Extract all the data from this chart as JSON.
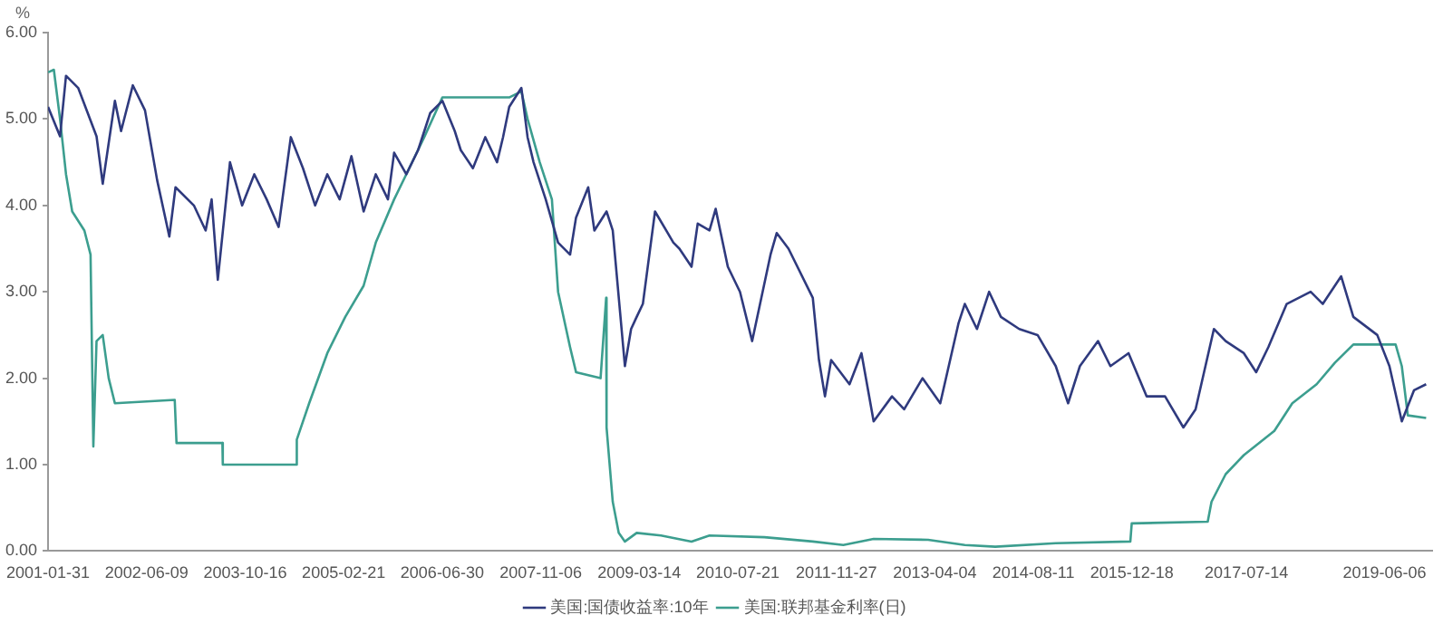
{
  "chart_data": {
    "type": "line",
    "ylabel": "%",
    "xlim": [
      "2001-01-31",
      "2020-01-31"
    ],
    "xticks": [
      "2001-01-31",
      "2002-06-09",
      "2003-10-16",
      "2005-02-21",
      "2006-06-30",
      "2007-11-06",
      "2009-03-14",
      "2010-07-21",
      "2011-11-27",
      "2013-04-04",
      "2014-08-11",
      "2015-12-18",
      "2017-07-14",
      "2019-06-06"
    ],
    "ylim": [
      0,
      6
    ],
    "yticks": [
      {
        "value": 0,
        "label": "0.00"
      },
      {
        "value": 1,
        "label": "1.00"
      },
      {
        "value": 2,
        "label": "2.00"
      },
      {
        "value": 3,
        "label": "3.00"
      },
      {
        "value": 4,
        "label": "4.00"
      },
      {
        "value": 5,
        "label": "5.00"
      },
      {
        "value": 6,
        "label": "6.00"
      }
    ],
    "grid": false,
    "legend": "bottom",
    "marker": "none",
    "line_style": "solid",
    "series": [
      {
        "name": "美国:国债收益率:10年",
        "color": "#2f3a7e",
        "x": [
          "2001-01-31",
          "2001-04",
          "2001-05",
          "2001-07",
          "2001-10",
          "2001-11",
          "2002-01",
          "2002-02",
          "2002-04",
          "2002-06",
          "2002-08",
          "2002-10",
          "2002-11",
          "2003-02",
          "2003-04",
          "2003-05",
          "2003-06",
          "2003-08",
          "2003-10",
          "2003-12",
          "2004-02",
          "2004-04",
          "2004-06",
          "2004-08",
          "2004-10",
          "2004-12",
          "2005-02",
          "2005-04",
          "2005-06",
          "2005-08",
          "2005-10",
          "2005-11",
          "2006-01",
          "2006-03",
          "2006-05",
          "2006-07",
          "2006-09",
          "2006-10",
          "2006-12",
          "2007-02",
          "2007-04",
          "2007-05",
          "2007-06",
          "2007-08",
          "2007-09",
          "2007-10",
          "2007-12",
          "2008-02",
          "2008-04",
          "2008-05",
          "2008-07",
          "2008-08",
          "2008-10",
          "2008-11",
          "2009-01",
          "2009-02",
          "2009-03",
          "2009-04",
          "2009-06",
          "2009-09",
          "2009-10",
          "2009-12",
          "2010-01",
          "2010-03",
          "2010-04",
          "2010-06",
          "2010-08",
          "2010-10",
          "2011-01",
          "2011-02",
          "2011-04",
          "2011-08",
          "2011-09",
          "2011-10",
          "2011-11",
          "2012-02",
          "2012-04",
          "2012-06",
          "2012-09",
          "2012-11",
          "2013-02",
          "2013-05",
          "2013-08",
          "2013-09",
          "2013-11",
          "2014-01",
          "2014-03",
          "2014-06",
          "2014-09",
          "2014-12",
          "2015-02",
          "2015-04",
          "2015-07",
          "2015-09",
          "2015-12",
          "2016-03",
          "2016-06",
          "2016-09",
          "2016-11",
          "2017-02",
          "2017-04",
          "2017-07",
          "2017-09",
          "2017-11",
          "2018-02",
          "2018-06",
          "2018-08",
          "2018-11",
          "2019-01",
          "2019-05",
          "2019-07",
          "2019-09",
          "2019-11",
          "2020-01"
        ],
        "values": [
          5.14,
          4.8,
          5.5,
          5.36,
          4.8,
          4.25,
          5.21,
          4.86,
          5.39,
          5.1,
          4.29,
          3.64,
          4.21,
          4.0,
          3.71,
          4.07,
          3.14,
          4.5,
          4.0,
          4.36,
          4.07,
          3.75,
          4.79,
          4.43,
          4.0,
          4.36,
          4.07,
          4.57,
          3.93,
          4.36,
          4.07,
          4.61,
          4.36,
          4.64,
          5.07,
          5.21,
          4.86,
          4.64,
          4.43,
          4.79,
          4.5,
          4.79,
          5.14,
          5.36,
          4.79,
          4.5,
          4.07,
          3.57,
          3.43,
          3.86,
          4.21,
          3.71,
          3.93,
          3.71,
          2.14,
          2.57,
          2.71,
          2.86,
          3.93,
          3.57,
          3.5,
          3.29,
          3.79,
          3.71,
          3.96,
          3.29,
          3.0,
          2.43,
          3.43,
          3.68,
          3.5,
          2.93,
          2.21,
          1.79,
          2.21,
          1.93,
          2.29,
          1.5,
          1.79,
          1.64,
          2.0,
          1.71,
          2.64,
          2.86,
          2.57,
          3.0,
          2.71,
          2.57,
          2.5,
          2.14,
          1.71,
          2.14,
          2.43,
          2.14,
          2.29,
          1.79,
          1.79,
          1.43,
          1.64,
          2.57,
          2.43,
          2.29,
          2.07,
          2.36,
          2.86,
          3.0,
          2.86,
          3.18,
          2.71,
          2.5,
          2.14,
          1.5,
          1.86,
          1.93
        ]
      },
      {
        "name": "美国:联邦基金利率(日)",
        "color": "#3c9e8f",
        "x": [
          "2001-01-31",
          "2001-03",
          "2001-04",
          "2001-05",
          "2001-06",
          "2001-08",
          "2001-09",
          "2001-09-15",
          "2001-10",
          "2001-11",
          "2001-12",
          "2002-01",
          "2002-10-28",
          "2002-11-06",
          "2003-06-24",
          "2003-06-26",
          "2004-06-30",
          "2004-07-01",
          "2004-09",
          "2004-12",
          "2005-03",
          "2005-06",
          "2005-08",
          "2005-11",
          "2006-01",
          "2006-04",
          "2006-07",
          "2007-06",
          "2007-08",
          "2007-09",
          "2007-11",
          "2008-01",
          "2008-02",
          "2008-04",
          "2008-05",
          "2008-09",
          "2008-09-29",
          "2008-10",
          "2008-11",
          "2008-12",
          "2009-01",
          "2009-03",
          "2009-07",
          "2009-12",
          "2010-03",
          "2010-12",
          "2011-08",
          "2012-01",
          "2012-06",
          "2013-03",
          "2013-09",
          "2014-02",
          "2014-12",
          "2015-12-10",
          "2015-12-17",
          "2017-01-01",
          "2017-01-20",
          "2017-04",
          "2017-07",
          "2017-12",
          "2018-03",
          "2018-07",
          "2018-10",
          "2019-01",
          "2019-08",
          "2019-09",
          "2019-10",
          "2020-01"
        ],
        "values": [
          5.54,
          5.57,
          5.0,
          4.36,
          3.93,
          3.71,
          3.43,
          1.21,
          2.43,
          2.5,
          2.0,
          1.71,
          1.75,
          1.25,
          1.25,
          1.0,
          1.0,
          1.29,
          1.71,
          2.29,
          2.71,
          3.07,
          3.57,
          4.07,
          4.36,
          4.79,
          5.25,
          5.25,
          5.32,
          5.0,
          4.5,
          4.07,
          3.0,
          2.36,
          2.07,
          2.0,
          2.93,
          1.43,
          0.57,
          0.21,
          0.11,
          0.21,
          0.18,
          0.11,
          0.18,
          0.16,
          0.11,
          0.07,
          0.14,
          0.13,
          0.07,
          0.05,
          0.09,
          0.11,
          0.32,
          0.34,
          0.57,
          0.89,
          1.11,
          1.39,
          1.71,
          1.93,
          2.18,
          2.39,
          2.39,
          2.14,
          1.57,
          1.54
        ]
      }
    ]
  }
}
